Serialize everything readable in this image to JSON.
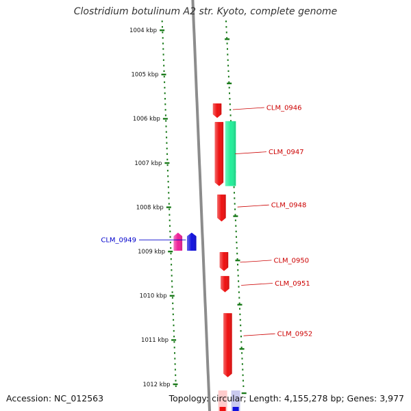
{
  "title": "Clostridium botulinum A2 str. Kyoto, complete genome",
  "footer": {
    "accession": "Accession: NC_012563",
    "summary": "Topology: circular; Length: 4,155,278 bp; Genes: 3,977"
  },
  "colors": {
    "backbone": "#8c8c8c",
    "tick": "#1a7a1a",
    "gene_forward": "#ee1111",
    "gene_reverse_blue": "#1111dd",
    "gene_reverse_pink": "#ee2299",
    "gene_green": "#22ee99",
    "label_forward": "#cc0000",
    "label_reverse": "#0000cc"
  },
  "axis": {
    "unit": "kbp",
    "ticks": [
      {
        "value": 1004,
        "label": "1004 kbp"
      },
      {
        "value": 1005,
        "label": "1005 kbp"
      },
      {
        "value": 1006,
        "label": "1006 kbp"
      },
      {
        "value": 1007,
        "label": "1007 kbp"
      },
      {
        "value": 1008,
        "label": "1008 kbp"
      },
      {
        "value": 1009,
        "label": "1009 kbp"
      },
      {
        "value": 1010,
        "label": "1010 kbp"
      },
      {
        "value": 1011,
        "label": "1011 kbp"
      },
      {
        "value": 1012,
        "label": "1012 kbp"
      }
    ]
  },
  "genes": [
    {
      "id": "gene-unlabeled-1",
      "label": "",
      "start": 1005.66,
      "end": 1005.98,
      "strand": "+",
      "color": "#ee1111",
      "labelColor": "#cc0000"
    },
    {
      "id": "gene-CLM_0946",
      "label": "CLM_0946",
      "start": 1006.08,
      "end": 1007.52,
      "strand": "+",
      "color": "#ee1111",
      "labelColor": "#cc0000"
    },
    {
      "id": "gene-CLM_0947",
      "label": "CLM_0947",
      "start": 1006.06,
      "end": 1007.52,
      "strand": "+",
      "color": "#22ee99",
      "labelColor": "#cc0000",
      "track": "outer"
    },
    {
      "id": "gene-CLM_0948",
      "label": "CLM_0948",
      "start": 1007.72,
      "end": 1008.32,
      "strand": "+",
      "color": "#ee1111",
      "labelColor": "#cc0000"
    },
    {
      "id": "gene-CLM_0949-pink",
      "label": "",
      "start": 1008.58,
      "end": 1008.98,
      "strand": "-",
      "color": "#ee2299",
      "labelColor": "#0000cc",
      "track": "inner2"
    },
    {
      "id": "gene-CLM_0949",
      "label": "CLM_0949",
      "start": 1008.58,
      "end": 1008.98,
      "strand": "-",
      "color": "#1111dd",
      "labelColor": "#0000cc",
      "track": "inner"
    },
    {
      "id": "gene-CLM_0950",
      "label": "CLM_0950",
      "start": 1009.02,
      "end": 1009.44,
      "strand": "+",
      "color": "#ee1111",
      "labelColor": "#cc0000"
    },
    {
      "id": "gene-CLM_0951",
      "label": "CLM_0951",
      "start": 1009.56,
      "end": 1009.92,
      "strand": "+",
      "color": "#ee1111",
      "labelColor": "#cc0000"
    },
    {
      "id": "gene-CLM_0952",
      "label": "CLM_0952",
      "start": 1010.4,
      "end": 1011.84,
      "strand": "+",
      "color": "#ee1111",
      "labelColor": "#cc0000"
    }
  ]
}
